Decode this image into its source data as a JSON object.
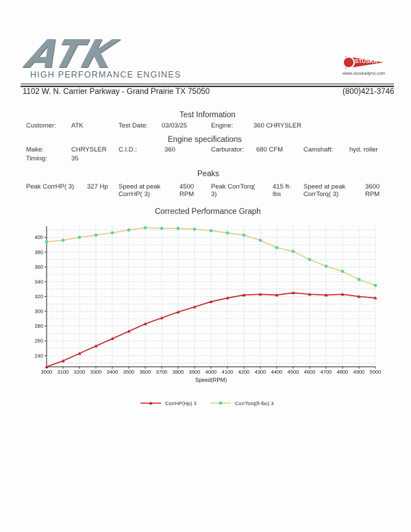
{
  "header": {
    "logo_text": "ATK",
    "logo_subtitle": "HIGH PERFORMANCE ENGINES",
    "badge_name": "STUSKA",
    "badge_url": "www.stuskadyno.com",
    "address": "1102 W. N. Carrier Parkway  -  Grand Prairie TX 75050",
    "phone": "(800)421-3746"
  },
  "test_info": {
    "title": "Test Information",
    "customer_label": "Customer:",
    "customer_value": "ATK",
    "date_label": "Test Date:",
    "date_value": "03/03/25",
    "engine_label": "Engine:",
    "engine_value": "360 CHRYSLER"
  },
  "engine_specs": {
    "title": "Engine specifications",
    "make_label": "Make:",
    "make_value": "CHRYSLER",
    "cid_label": "C.I.D.:",
    "cid_value": "360",
    "carb_label": "Carburator:",
    "carb_value": "680 CFM",
    "cam_label": "Camshaft:",
    "cam_value": "hyd. roller",
    "timing_label": "Timing:",
    "timing_value": "35"
  },
  "peaks": {
    "title": "Peaks",
    "hp_label": "Peak CorrHP( 3)",
    "hp_value": "327 Hp",
    "hp_speed_label_1": "Speed at peak",
    "hp_speed_label_2": "CorrHP( 3)",
    "hp_speed_value_1": "4500",
    "hp_speed_value_2": "RPM",
    "tq_label_1": "Peak CorrTorq(",
    "tq_label_2": "3)",
    "tq_value_1": "415 ft-",
    "tq_value_2": "lbs",
    "tq_speed_label_1": "Speed at peak",
    "tq_speed_label_2": "CorrTorq( 3)",
    "tq_speed_value_1": "3600",
    "tq_speed_value_2": "RPM"
  },
  "chart_data": {
    "type": "line",
    "title": "Corrected Performance Graph",
    "xlabel": "Speed(RPM)",
    "ylabel": "",
    "x": [
      3000,
      3100,
      3200,
      3300,
      3400,
      3500,
      3600,
      3700,
      3800,
      3900,
      4000,
      4100,
      4200,
      4300,
      4400,
      4500,
      4600,
      4700,
      4800,
      4900,
      5000
    ],
    "xlim": [
      3000,
      5000
    ],
    "ylim": [
      225,
      415
    ],
    "yticks": [
      240,
      260,
      280,
      300,
      320,
      340,
      360,
      380,
      400
    ],
    "grid": true,
    "legend": "bottom",
    "series": [
      {
        "name": "CorrHP(Hp) 3",
        "color": "#c0252e",
        "values": [
          225,
          233,
          243,
          253,
          263,
          273,
          283,
          291,
          299,
          306,
          313,
          318,
          322,
          323,
          322,
          325,
          323,
          322,
          323,
          320,
          318
        ]
      },
      {
        "name": "CorrTorq(ft-lbs) 3",
        "color": "#5ecdb8",
        "line_color": "#d9d57a",
        "values": [
          394,
          396,
          400,
          403,
          406,
          410,
          413,
          412,
          412,
          411,
          409,
          406,
          403,
          396,
          386,
          381,
          370,
          361,
          354,
          343,
          335
        ]
      }
    ]
  }
}
